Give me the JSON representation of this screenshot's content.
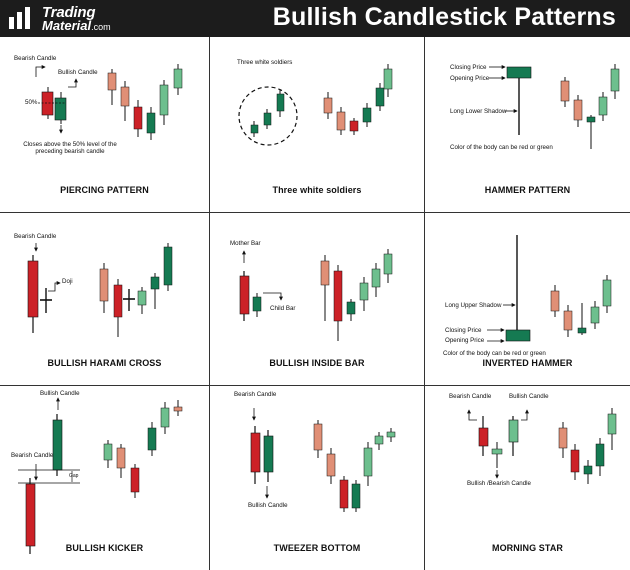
{
  "header": {
    "logo_word1": "Trading",
    "logo_word2": "Material",
    "logo_domain": ".com",
    "title": "Bullish Candlestick Patterns"
  },
  "colors": {
    "bull": "#157a52",
    "bear": "#cc2127",
    "light_bull": "#6dbf8e",
    "light_bear": "#e08f76",
    "header_bg": "#1c1c1c"
  },
  "panels": {
    "piercing": {
      "title": "PIERCING PATTERN",
      "bearish_label": "Bearish Candle",
      "bullish_label": "Bullish Candle",
      "pct_label": "50%",
      "note_line1": "Closes above the 50% level of the",
      "note_line2": "preceding bearish candle"
    },
    "three_white": {
      "title": "Three white soldiers",
      "label": "Three white soldiers"
    },
    "hammer": {
      "title": "HAMMER PATTERN",
      "closing": "Closing Price",
      "opening": "Opening Price",
      "shadow": "Long Lower Shadow",
      "note": "Color of the body can be red or green"
    },
    "harami": {
      "title": "BULLISH HARAMI CROSS",
      "bearish_label": "Bearish Candle",
      "doji_label": "Doji"
    },
    "inside_bar": {
      "title": "BULLISH INSIDE BAR",
      "mother": "Mother Bar",
      "child": "Child Bar"
    },
    "inverted": {
      "title": "INVERTED HAMMER",
      "shadow": "Long Upper Shadow",
      "closing": "Closing Price",
      "opening": "Opening Price",
      "note": "Color of the body can be red or green"
    },
    "kicker": {
      "title": "BULLISH KICKER",
      "bullish_label": "Bullish Candle",
      "bearish_label": "Bearish Candle",
      "gap_label": "Gap"
    },
    "tweezer": {
      "title": "TWEEZER BOTTOM",
      "bearish_label": "Bearish Candle",
      "bullish_label": "Bullish Candle"
    },
    "morning_star": {
      "title": "MORNING STAR",
      "bearish_label": "Bearish Candle",
      "bullish_label": "Bullish Candle",
      "mid_label": "Bullish /Bearish Candle"
    }
  }
}
